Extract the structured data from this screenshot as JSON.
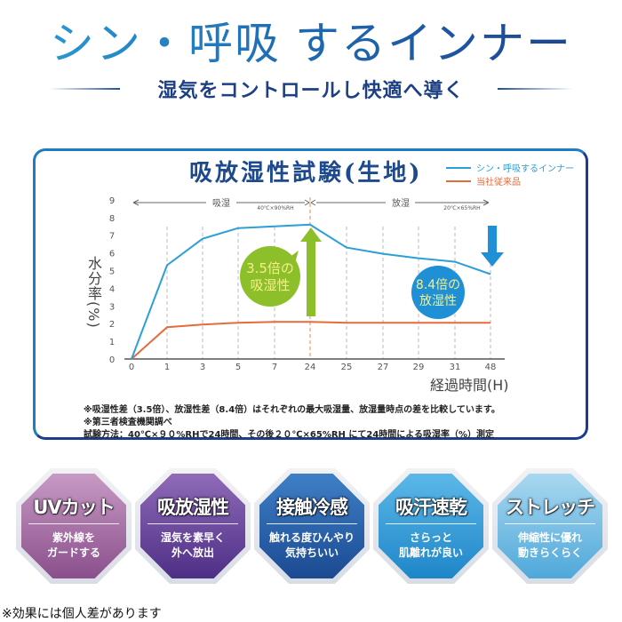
{
  "header": {
    "title": "シン・呼吸するインナー",
    "title_main_a": "シン・呼吸",
    "title_reg": "®",
    "title_main_b": "するインナー",
    "subtitle": "湿気をコントロールし快適へ導く"
  },
  "chart_panel": {
    "title": "吸放湿性試験(生地)",
    "legend": [
      {
        "label": "シン・呼吸するインナー",
        "color": "#2a9fd8"
      },
      {
        "label": "当社従来品",
        "color": "#e56b3a"
      }
    ],
    "phase_absorb": {
      "label": "吸湿",
      "condition": "40℃×90%RH"
    },
    "phase_release": {
      "label": "放湿",
      "condition": "20℃×65%RH"
    },
    "y_axis_label": "水分率(%)",
    "x_axis_label": "経過時間(H)",
    "callout_absorb": {
      "line1": "3.5倍の",
      "line2": "吸湿性",
      "color": "#8dbf2a",
      "text_color": "#f4f08a"
    },
    "callout_release": {
      "line1": "8.4倍の",
      "line2": "放湿性",
      "color": "#1f8fd6",
      "text_color": "#f4f08a"
    },
    "notes": [
      "※吸湿性差（3.5倍）、放湿性差（8.4倍）はそれぞれの最大吸湿量、放湿量時点の差を比較しています。",
      "※第三者検査機関調べ",
      "試験方法：40℃×９０%RHで24時間、その後２０℃×65%RH にて24時間による吸湿率（%）測定"
    ]
  },
  "chart_data": {
    "type": "line",
    "title": "吸放湿性試験(生地)",
    "xlabel": "経過時間(H)",
    "ylabel": "水分率(%)",
    "categories": [
      "0",
      "1",
      "3",
      "5",
      "7",
      "24",
      "25",
      "27",
      "29",
      "31",
      "48"
    ],
    "series": [
      {
        "name": "シン・呼吸するインナー",
        "color": "#2a9fd8",
        "values": [
          0,
          5.3,
          6.8,
          7.4,
          7.5,
          7.6,
          6.3,
          5.95,
          5.7,
          5.5,
          4.8
        ]
      },
      {
        "name": "当社従来品",
        "color": "#e56b3a",
        "values": [
          0,
          1.8,
          1.95,
          2.05,
          2.1,
          2.1,
          2.05,
          2.05,
          2.05,
          2.05,
          2.05
        ]
      }
    ],
    "yticks": [
      0,
      1,
      2,
      3,
      4,
      5,
      6,
      7,
      8,
      9
    ],
    "ylim": [
      0,
      9
    ],
    "grid": "vertical dashed",
    "legend_position": "top-right",
    "annotations": [
      "吸湿 40℃×90%RH (0–24H)",
      "放湿 20℃×65%RH (24–48H)",
      "3.5倍の吸湿性",
      "8.4倍の放湿性"
    ]
  },
  "badges": [
    {
      "title": "UVカット",
      "desc1": "紫外線を",
      "desc2": "ガードする",
      "color_top": "#c79ac4",
      "color_bottom": "#8a4f8c"
    },
    {
      "title": "吸放湿性",
      "desc1": "湿気を素早く",
      "desc2": "外へ放出",
      "color_top": "#8f6bb8",
      "color_bottom": "#4e2f86"
    },
    {
      "title": "接触冷感",
      "desc1": "触れる度ひんやり",
      "desc2": "気持ちいい",
      "color_top": "#3f7fc6",
      "color_bottom": "#1b4a92"
    },
    {
      "title": "吸汗速乾",
      "desc1": "さらっと",
      "desc2": "肌離れが良い",
      "color_top": "#5cb8e8",
      "color_bottom": "#1e86c8"
    },
    {
      "title": "ストレッチ",
      "desc1": "伸縮性に優れ",
      "desc2": "動きらくらく",
      "color_top": "#a9d8f0",
      "color_bottom": "#4fa8da"
    }
  ],
  "footnote": "※効果には個人差があります"
}
